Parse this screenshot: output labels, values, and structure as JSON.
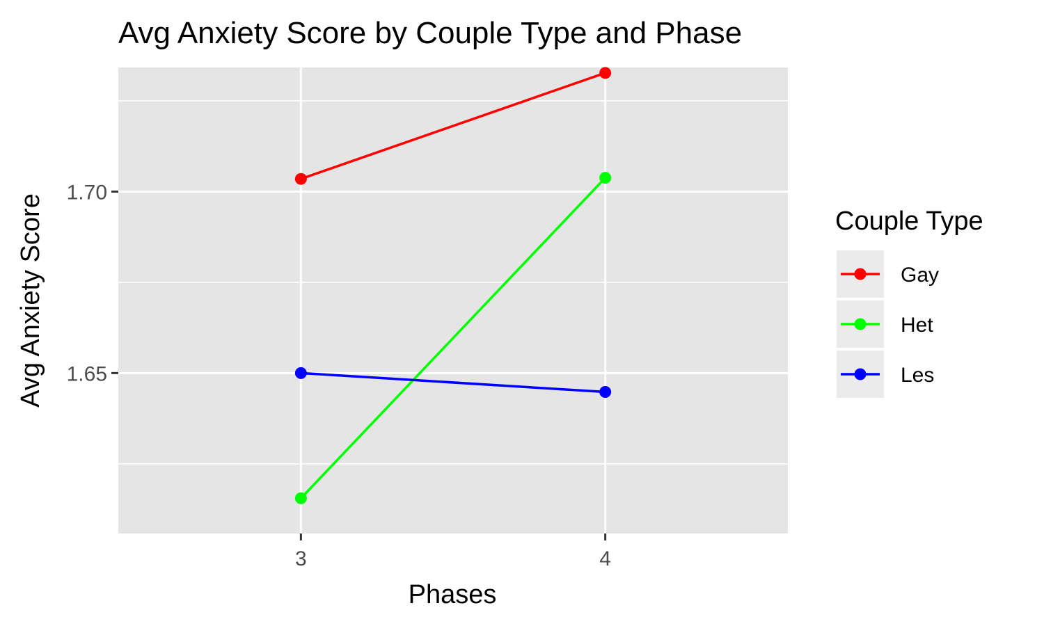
{
  "chart_data": {
    "type": "line",
    "title": "Avg Anxiety Score by Couple Type and Phase",
    "xlabel": "Phases",
    "ylabel": "Avg Anxiety Score",
    "x": [
      3,
      4
    ],
    "x_tick_labels": [
      "3",
      "4"
    ],
    "y_ticks": [
      1.65,
      1.7
    ],
    "y_tick_labels": [
      "1.65",
      "1.70"
    ],
    "ylim": [
      1.6058,
      1.7342
    ],
    "grid": true,
    "legend": {
      "title": "Couple Type",
      "position": "right"
    },
    "series": [
      {
        "name": "Gay",
        "color": "#ff0000",
        "values": [
          1.7035,
          1.7327
        ]
      },
      {
        "name": "Het",
        "color": "#00ff00",
        "values": [
          1.6155,
          1.7038
        ]
      },
      {
        "name": "Les",
        "color": "#0000ff",
        "values": [
          1.65,
          1.6448
        ]
      }
    ]
  }
}
